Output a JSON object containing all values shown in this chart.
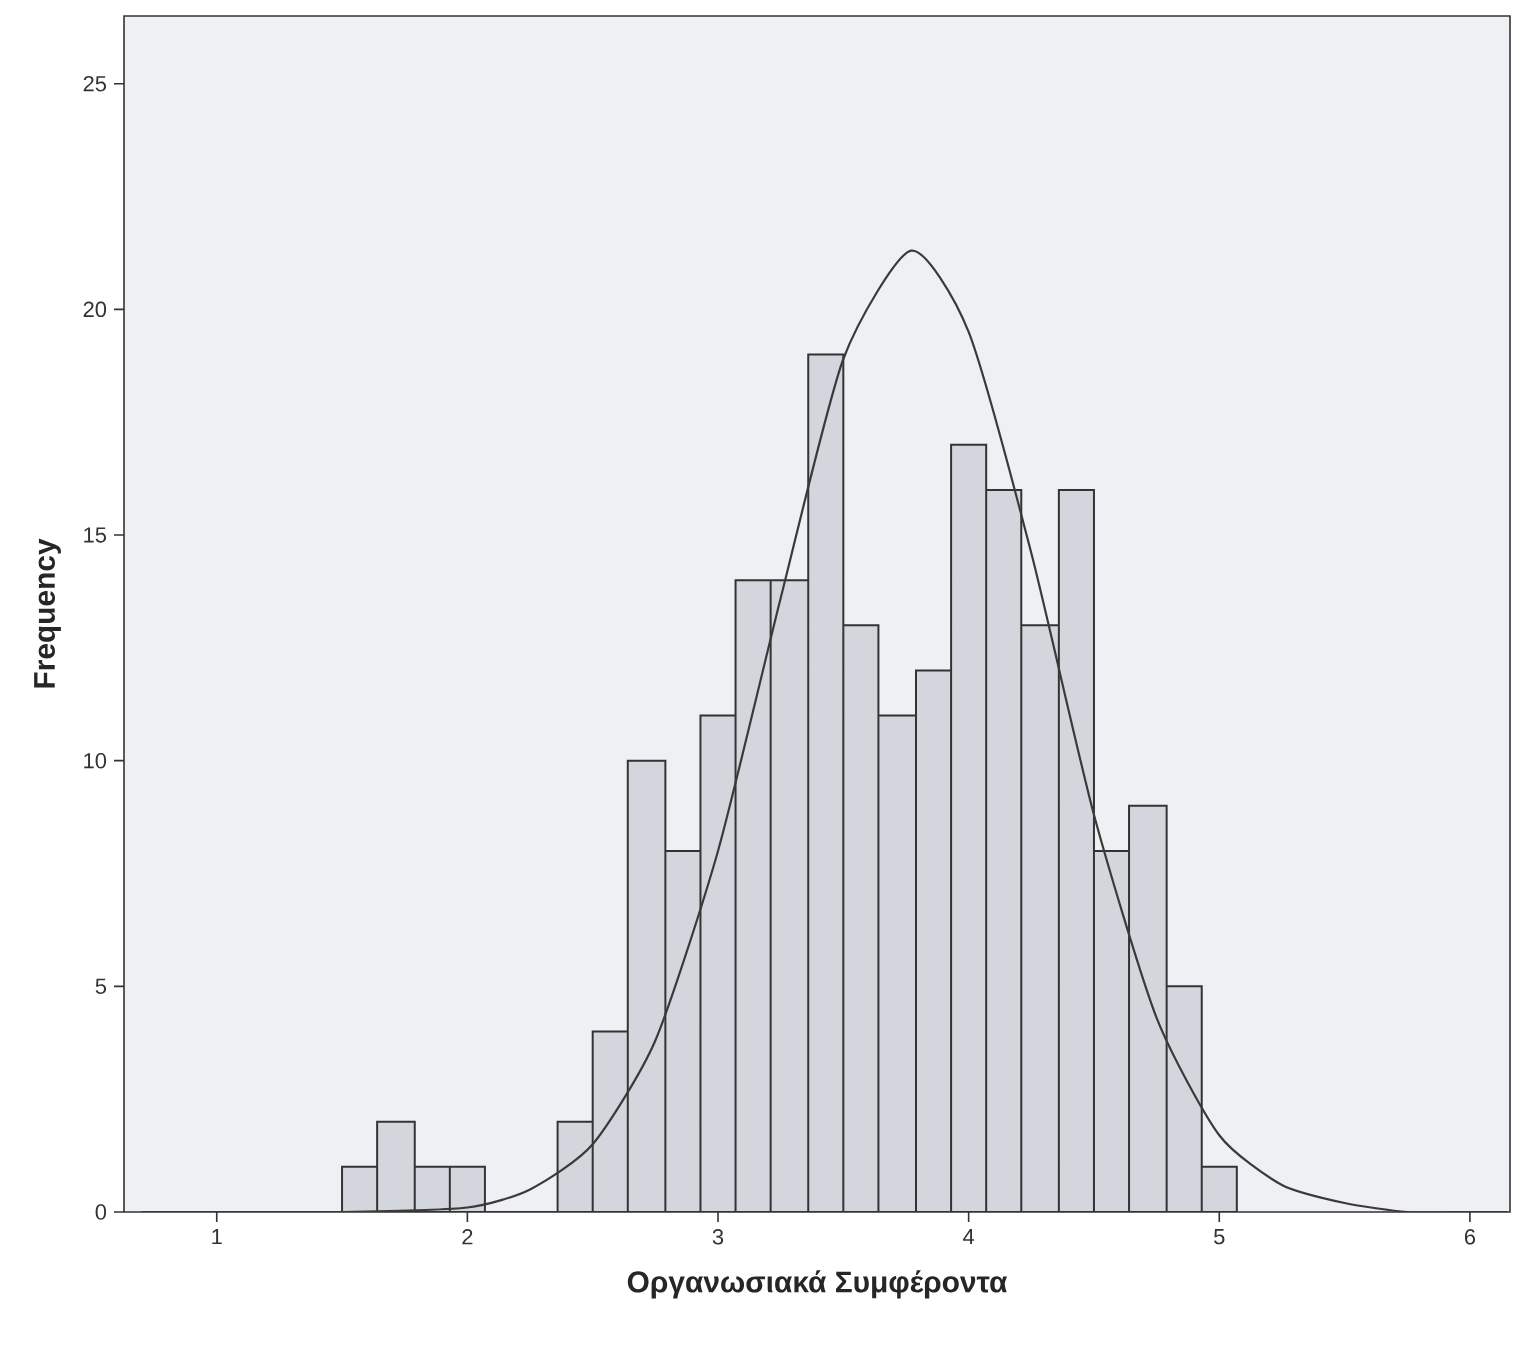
{
  "chart_data": {
    "type": "histogram",
    "xlabel": "Οργανωσιακά Συμφέροντα",
    "ylabel": "Frequency",
    "xlim": [
      0.63,
      6.16
    ],
    "ylim": [
      0,
      26.5
    ],
    "xticks": [
      1,
      2,
      3,
      4,
      5,
      6
    ],
    "yticks": [
      0,
      5,
      10,
      15,
      20,
      25
    ],
    "series": [
      {
        "color": "#d3d6dc",
        "bins": [
          1.5,
          1.64,
          1.79,
          1.93,
          2.07,
          2.36,
          2.5,
          2.64,
          2.79,
          2.93,
          3.07,
          3.21,
          3.36,
          3.5,
          3.64,
          3.79,
          3.93,
          4.07,
          4.21,
          4.36,
          4.5,
          4.64,
          4.79,
          4.93,
          5.07
        ],
        "values": [
          1,
          2,
          1,
          1,
          0,
          2,
          4,
          10,
          8,
          11,
          14,
          14,
          19,
          13,
          11,
          12,
          17,
          16,
          13,
          16,
          8,
          9,
          5,
          1
        ]
      },
      {
        "type": "line",
        "color": "#3a3a3a",
        "x": [
          0.7,
          1.0,
          1.5,
          2.0,
          2.25,
          2.5,
          2.75,
          3.0,
          3.25,
          3.5,
          3.77,
          4.0,
          4.25,
          4.5,
          4.75,
          5.0,
          5.25,
          5.5,
          5.75,
          6.0,
          6.15
        ],
        "values": [
          0,
          0,
          0,
          0.1,
          0.5,
          1.5,
          3.8,
          8.0,
          13.6,
          18.9,
          21.3,
          19.5,
          14.6,
          8.8,
          4.3,
          1.7,
          0.6,
          0.2,
          0,
          0,
          0
        ]
      }
    ]
  }
}
